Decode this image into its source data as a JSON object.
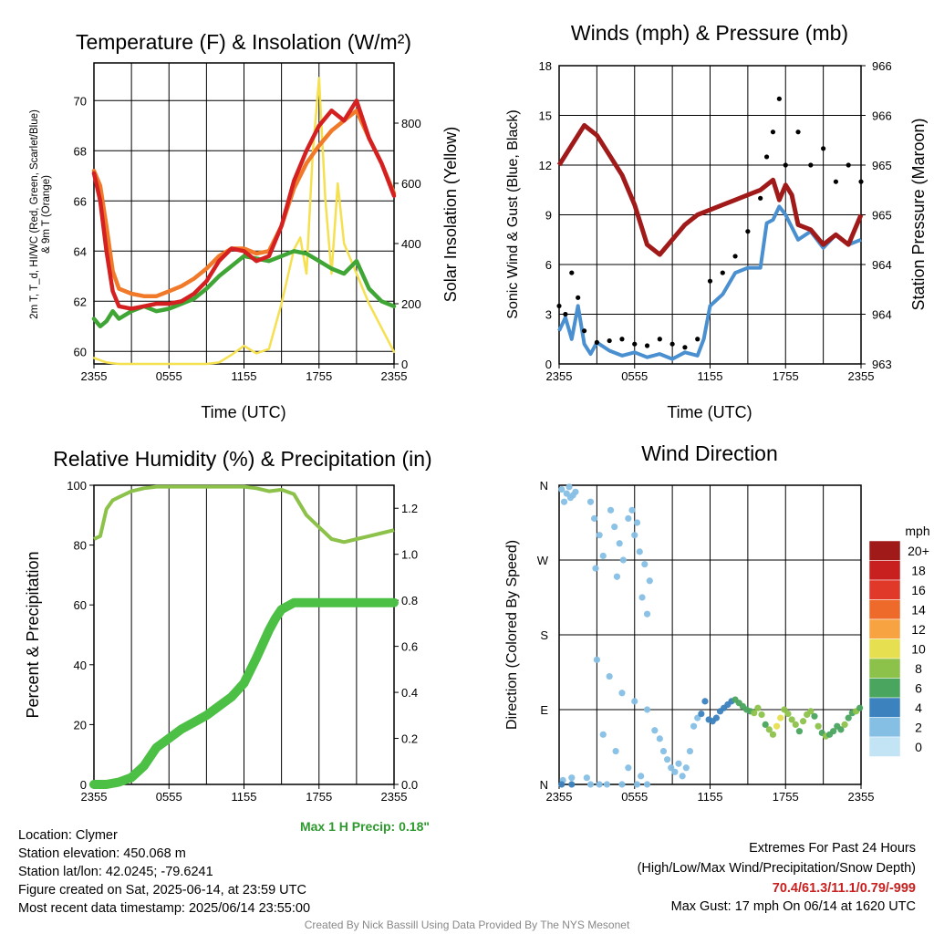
{
  "panels": {
    "temp": {
      "title": "Temperature (F) & Insolation (W/m²)",
      "ylabel_left_1": "2m T, T_d, HI/WC (Red, Green, Scarlet/Blue)",
      "ylabel_left_2": "& 9m T (Orange)",
      "ylabel_right": "Solar Insolation (Yellow)",
      "xlabel": "Time (UTC)"
    },
    "wind": {
      "title": "Winds (mph) & Pressure (mb)",
      "ylabel_left": "Sonic Wind & Gust (Blue, Black)",
      "ylabel_right": "Station Pressure (Maroon)",
      "xlabel": "Time (UTC)"
    },
    "rh": {
      "title": "Relative Humidity (%) & Precipitation (in)",
      "ylabel_left": "Percent & Precipitation",
      "max_precip": "Max 1 H Precip: 0.18\""
    },
    "dir": {
      "title": "Wind Direction",
      "ylabel_left": "Direction (Colored By Speed)",
      "legend_title": "mph",
      "legend_labels": [
        "20+",
        "18",
        "16",
        "14",
        "12",
        "10",
        "8",
        "6",
        "4",
        "2",
        "0"
      ],
      "legend_colors": [
        "#a01a1a",
        "#c8201f",
        "#e0392a",
        "#ee6a2b",
        "#f7a342",
        "#e6df4f",
        "#8cc24a",
        "#4aa55e",
        "#3b82be",
        "#86bfe4",
        "#c3e4f5"
      ]
    }
  },
  "info": {
    "location": "Location: Clymer",
    "elevation": "Station elevation: 450.068 m",
    "latlon": "Station lat/lon: 42.0245; -79.6241",
    "created": "Figure created on Sat, 2025-06-14, at 23:59 UTC",
    "recent": "Most recent data timestamp: 2025/06/14 23:55:00",
    "extremes_title": "Extremes For Past 24 Hours",
    "extremes_sub": "(High/Low/Max Wind/Precipitation/Snow Depth)",
    "extremes_values": "70.4/61.3/11.1/0.79/-999",
    "max_gust": "Max Gust: 17 mph On 06/14 at 1620 UTC",
    "credit": "Created By Nick Bassill Using Data Provided By The NYS Mesonet"
  },
  "chart_data": [
    {
      "type": "line",
      "title": "Temperature (F) & Insolation (W/m²)",
      "xlabel": "Time (UTC)",
      "x_ticks": [
        "2355",
        "0555",
        "1155",
        "1755",
        "2355"
      ],
      "x_hours": [
        0,
        3,
        6,
        9,
        12,
        15,
        18,
        21,
        24
      ],
      "ylim": [
        59.5,
        71.5
      ],
      "y_ticks": [
        60,
        62,
        64,
        66,
        68,
        70
      ],
      "y2lim": [
        0,
        1000
      ],
      "y2_ticks": [
        0,
        200,
        400,
        600,
        800
      ],
      "series": [
        {
          "name": "2m T",
          "color": "#d42020",
          "axis": "left",
          "x": [
            0,
            0.5,
            1,
            1.5,
            2,
            3,
            4,
            5,
            6,
            7,
            8,
            9,
            10,
            11,
            12,
            13,
            14,
            15,
            16,
            17,
            18,
            19,
            20,
            21,
            22,
            23,
            24
          ],
          "values": [
            67.1,
            66,
            64,
            62.4,
            61.8,
            61.7,
            61.8,
            61.9,
            61.9,
            62,
            62.3,
            62.8,
            63.6,
            64.1,
            64,
            63.6,
            63.8,
            65,
            66.8,
            68,
            69,
            69.6,
            69.2,
            70,
            68.5,
            67.5,
            66.2
          ]
        },
        {
          "name": "9m T",
          "color": "#f07a2a",
          "axis": "left",
          "x": [
            0,
            0.5,
            1,
            1.5,
            2,
            3,
            4,
            5,
            6,
            7,
            8,
            9,
            10,
            11,
            12,
            13,
            14,
            15,
            16,
            17,
            18,
            19,
            20,
            21,
            22,
            23,
            24
          ],
          "values": [
            67.2,
            66.6,
            65,
            63.2,
            62.5,
            62.3,
            62.2,
            62.2,
            62.4,
            62.6,
            62.9,
            63.3,
            63.8,
            64.1,
            64.1,
            63.9,
            64,
            65,
            66.5,
            67.5,
            68.2,
            68.8,
            69.2,
            69.6,
            68.5,
            67.5,
            66.3
          ]
        },
        {
          "name": "2m Td",
          "color": "#3fa535",
          "axis": "left",
          "x": [
            0,
            0.5,
            1,
            1.5,
            2,
            3,
            4,
            5,
            6,
            7,
            8,
            9,
            10,
            11,
            12,
            13,
            14,
            15,
            16,
            17,
            18,
            19,
            20,
            21,
            22,
            23,
            24
          ],
          "values": [
            61.3,
            61,
            61.2,
            61.6,
            61.3,
            61.6,
            61.8,
            61.6,
            61.7,
            61.9,
            62.1,
            62.5,
            63,
            63.4,
            63.8,
            63.7,
            63.6,
            63.8,
            64,
            63.9,
            63.6,
            63.3,
            63.1,
            63.6,
            62.5,
            62,
            61.8
          ]
        },
        {
          "name": "Solar Insolation",
          "color": "#f5e050",
          "axis": "right",
          "x": [
            0,
            1,
            2,
            3,
            4,
            5,
            6,
            7,
            8,
            9,
            10,
            11,
            12,
            13,
            14,
            15,
            16,
            16.5,
            17,
            17.5,
            18,
            18.5,
            19,
            19.5,
            20,
            21,
            22,
            23,
            24
          ],
          "values": [
            20,
            5,
            0,
            0,
            0,
            0,
            0,
            0,
            0,
            0,
            5,
            30,
            60,
            35,
            50,
            200,
            380,
            420,
            300,
            700,
            950,
            550,
            300,
            600,
            400,
            300,
            200,
            120,
            40
          ]
        }
      ]
    },
    {
      "type": "line",
      "title": "Winds (mph) & Pressure (mb)",
      "xlabel": "Time (UTC)",
      "x_ticks": [
        "2355",
        "0555",
        "1155",
        "1755",
        "2355"
      ],
      "ylim": [
        0,
        18
      ],
      "y_ticks": [
        0,
        3,
        6,
        9,
        12,
        15,
        18
      ],
      "y2lim": [
        963,
        966
      ],
      "y2_tick_labels": [
        "963",
        "964",
        "964",
        "965",
        "965",
        "966",
        "966"
      ],
      "series": [
        {
          "name": "Sonic Wind",
          "color": "#4a90d0",
          "axis": "left",
          "x": [
            0,
            0.5,
            1,
            1.5,
            2,
            2.5,
            3,
            4,
            5,
            6,
            7,
            8,
            9,
            10,
            11,
            11.5,
            12,
            13,
            14,
            15,
            16,
            16.5,
            17,
            17.5,
            18,
            19,
            20,
            21,
            22,
            23,
            24
          ],
          "values": [
            2,
            2.8,
            1.5,
            3.5,
            1.2,
            0.6,
            1.3,
            0.8,
            0.5,
            0.7,
            0.4,
            0.6,
            0.3,
            0.7,
            0.5,
            1.5,
            3.5,
            4.2,
            5.5,
            5.8,
            5.8,
            8.5,
            8.7,
            9.5,
            9,
            7.5,
            8,
            7,
            7.8,
            7.2,
            7.5
          ]
        },
        {
          "name": "Gust",
          "color": "#000000",
          "axis": "left",
          "marker": "dot",
          "x": [
            0,
            0.5,
            1,
            1.5,
            2,
            3,
            4,
            5,
            6,
            7,
            8,
            9,
            10,
            11,
            12,
            13,
            14,
            15,
            16,
            16.5,
            17,
            17.5,
            18,
            19,
            20,
            21,
            22,
            23,
            24
          ],
          "values": [
            3.5,
            3,
            5.5,
            4,
            2,
            1.3,
            1.4,
            1.5,
            1.2,
            1.1,
            1.5,
            1.2,
            1,
            1.5,
            5,
            5.5,
            6.5,
            8,
            10,
            12.5,
            14,
            16,
            12,
            14,
            12,
            13,
            11,
            12,
            11
          ]
        },
        {
          "name": "Station Pressure",
          "color": "#a01a1a",
          "axis": "right",
          "x": [
            0,
            1,
            2,
            3,
            4,
            5,
            6,
            7,
            8,
            9,
            10,
            11,
            12,
            13,
            14,
            15,
            16,
            16.5,
            17,
            17.5,
            18,
            18.5,
            19,
            20,
            21,
            22,
            23,
            24
          ],
          "values": [
            965.0,
            965.2,
            965.4,
            965.3,
            965.1,
            964.9,
            964.6,
            964.2,
            964.1,
            964.25,
            964.4,
            964.5,
            964.55,
            964.6,
            964.65,
            964.7,
            964.75,
            964.8,
            964.85,
            964.65,
            964.8,
            964.7,
            964.4,
            964.35,
            964.2,
            964.3,
            964.2,
            964.5
          ]
        }
      ]
    },
    {
      "type": "line",
      "title": "Relative Humidity (%) & Precipitation (in)",
      "x_ticks": [
        "2355",
        "0555",
        "1155",
        "1755",
        "2355"
      ],
      "ylim": [
        0,
        100
      ],
      "y_ticks": [
        0,
        20,
        40,
        60,
        80,
        100
      ],
      "y2lim": [
        0,
        1.3
      ],
      "y2_ticks": [
        "0.0",
        "0.2",
        "0.4",
        "0.6",
        "0.8",
        "1.0",
        "1.2"
      ],
      "series": [
        {
          "name": "Relative Humidity",
          "color": "#8cc24a",
          "axis": "left",
          "x": [
            0,
            0.5,
            1,
            1.5,
            2,
            3,
            4,
            5,
            6,
            7,
            8,
            9,
            10,
            11,
            12,
            13,
            14,
            15,
            16,
            17,
            18,
            19,
            20,
            21,
            22,
            23,
            24
          ],
          "values": [
            82,
            83,
            92,
            95,
            96,
            98,
            99,
            99.5,
            99.5,
            99.5,
            99.5,
            99.5,
            99.5,
            99.5,
            99.5,
            99,
            98,
            98.5,
            97,
            90,
            86,
            82,
            81,
            82,
            83,
            84,
            85
          ]
        },
        {
          "name": "Precipitation",
          "color": "#4cbf45",
          "axis": "right",
          "x": [
            0,
            1,
            2,
            3,
            4,
            5,
            6,
            7,
            8,
            9,
            10,
            11,
            12,
            13,
            14,
            14.5,
            15,
            16,
            17,
            18,
            19,
            20,
            21,
            22,
            23,
            24
          ],
          "values": [
            0,
            0,
            0.01,
            0.03,
            0.08,
            0.16,
            0.2,
            0.24,
            0.27,
            0.3,
            0.34,
            0.38,
            0.44,
            0.55,
            0.67,
            0.72,
            0.76,
            0.79,
            0.79,
            0.79,
            0.79,
            0.79,
            0.79,
            0.79,
            0.79,
            0.79
          ]
        }
      ]
    },
    {
      "type": "scatter",
      "title": "Wind Direction",
      "x_ticks": [
        "2355",
        "0555",
        "1155",
        "1755",
        "2355"
      ],
      "y_ticks": [
        "N",
        "E",
        "S",
        "W",
        "N"
      ],
      "ylim": [
        0,
        360
      ],
      "color_scale_mph": [
        0,
        2,
        4,
        6,
        8,
        10,
        12,
        14,
        16,
        18,
        20
      ],
      "points": {
        "x": [
          0.2,
          0.6,
          0.9,
          1.3,
          0.4,
          0.8,
          1.1,
          0.3,
          1.0,
          2.5,
          2.8,
          3.2,
          3.5,
          2.9,
          4.1,
          4.4,
          4.8,
          5.1,
          4.6,
          5.5,
          6.0,
          6.4,
          6.8,
          7.2,
          5.8,
          6.2,
          6.6,
          7.0,
          3.0,
          4.0,
          5.0,
          6.0,
          7.0,
          3.5,
          4.5,
          5.5,
          6.5,
          2.2,
          7.6,
          8.0,
          8.3,
          8.6,
          8.9,
          9.2,
          9.5,
          9.8,
          10.1,
          10.4,
          10.7,
          11.0,
          11.3,
          11.6,
          11.9,
          12.2,
          12.5,
          12.8,
          13.1,
          13.4,
          13.7,
          14.0,
          14.3,
          14.6,
          14.9,
          15.2,
          15.5,
          15.8,
          16.1,
          16.4,
          16.7,
          17.0,
          17.3,
          17.6,
          17.9,
          18.2,
          18.5,
          18.8,
          19.1,
          19.4,
          19.7,
          20.0,
          20.3,
          20.6,
          20.9,
          21.2,
          21.5,
          21.8,
          22.1,
          22.4,
          22.7,
          23.0,
          23.3,
          23.6,
          23.9,
          0.2,
          1.0,
          2.5,
          3.8,
          5.0,
          6.2,
          7.0,
          3.2
        ],
        "y_deg": [
          355,
          350,
          345,
          352,
          340,
          358,
          348,
          5,
          8,
          340,
          320,
          300,
          275,
          260,
          330,
          310,
          290,
          270,
          250,
          320,
          300,
          280,
          265,
          245,
          330,
          315,
          225,
          205,
          150,
          130,
          110,
          100,
          90,
          60,
          40,
          20,
          10,
          8,
          65,
          55,
          40,
          30,
          20,
          15,
          25,
          10,
          20,
          40,
          70,
          80,
          85,
          100,
          78,
          76,
          80,
          88,
          92,
          96,
          100,
          102,
          98,
          94,
          90,
          88,
          86,
          92,
          84,
          72,
          66,
          60,
          70,
          80,
          90,
          85,
          78,
          72,
          64,
          76,
          84,
          88,
          82,
          70,
          62,
          58,
          60,
          64,
          70,
          66,
          72,
          80,
          86,
          88,
          92,
          0,
          0,
          0,
          0,
          0,
          0,
          0,
          0
        ],
        "speed_mph": [
          1,
          1,
          1,
          1,
          1,
          1,
          1,
          2,
          2,
          1,
          1,
          1,
          1,
          1,
          1,
          1,
          1,
          1,
          1,
          1,
          1,
          1,
          1,
          1,
          1,
          1,
          1,
          1,
          1,
          1,
          1,
          1,
          1,
          1,
          1,
          1,
          1,
          2,
          1,
          1,
          1,
          1,
          1,
          1,
          1,
          1,
          1,
          1,
          1,
          2,
          3,
          3,
          3,
          4,
          4,
          3,
          4,
          4,
          4,
          5,
          5,
          5,
          5,
          6,
          7,
          8,
          7,
          6,
          7,
          8,
          9,
          10,
          8,
          7,
          8,
          7,
          6,
          7,
          8,
          7,
          6,
          7,
          6,
          7,
          6,
          6,
          5,
          6,
          7,
          6,
          6,
          7,
          6,
          3,
          3,
          2,
          2,
          1,
          1,
          1,
          1
        ]
      }
    }
  ]
}
